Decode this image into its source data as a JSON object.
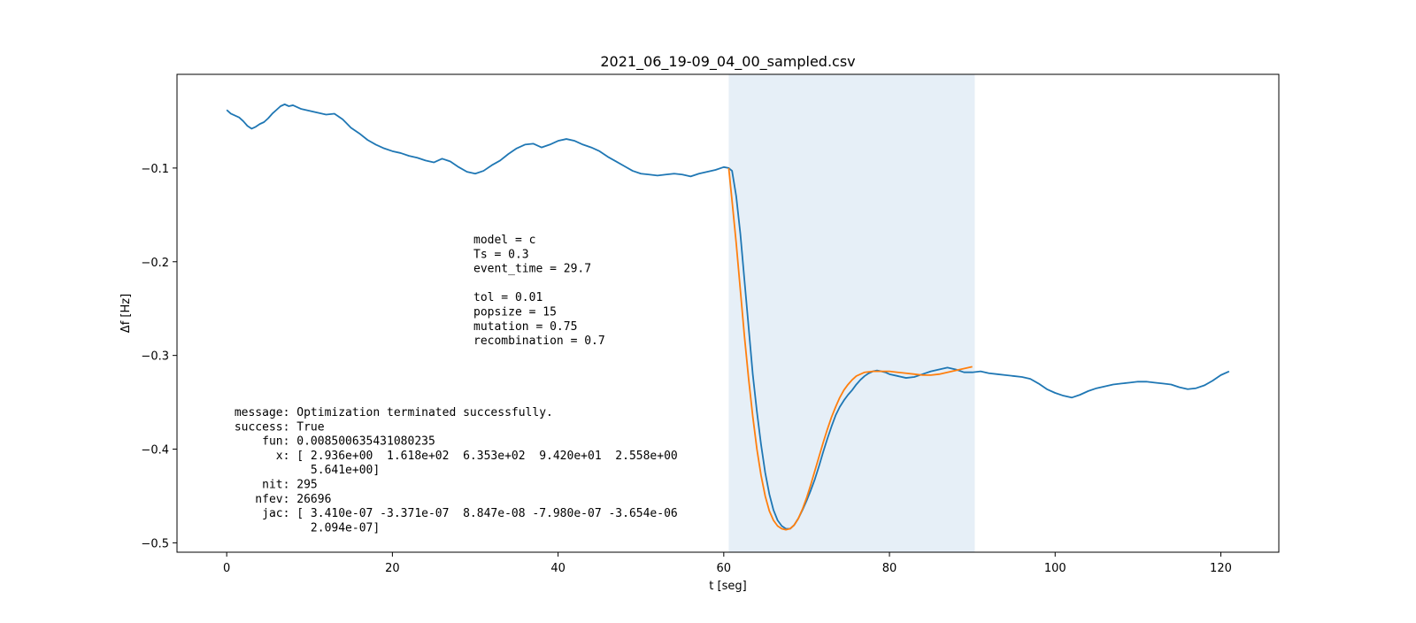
{
  "chart_data": {
    "type": "line",
    "title": "2021_06_19-09_04_00_sampled.csv",
    "xlabel": "t [seg]",
    "ylabel": "Δf [Hz]",
    "xlim": [
      -6.0,
      127.0
    ],
    "ylim": [
      -0.51,
      -0.0
    ],
    "xticks": [
      0,
      20,
      40,
      60,
      80,
      100,
      120
    ],
    "xtick_labels": [
      "0",
      "20",
      "40",
      "60",
      "80",
      "100",
      "120"
    ],
    "yticks": [
      -0.1,
      -0.2,
      -0.3,
      -0.4,
      -0.5
    ],
    "ytick_labels": [
      "−0.1",
      "−0.2",
      "−0.3",
      "−0.4",
      "−0.5"
    ],
    "grid": false,
    "shaded_span": {
      "x_start": 60.6,
      "x_end": 90.3,
      "color": "#e6eff7"
    },
    "colors": {
      "measured": "#1f77b4",
      "model": "#ff7f0e"
    },
    "series": [
      {
        "values": [
          [
            0.0,
            -0.038
          ],
          [
            0.5,
            -0.042
          ],
          [
            1.0,
            -0.044
          ],
          [
            1.5,
            -0.046
          ],
          [
            2.0,
            -0.05
          ],
          [
            2.5,
            -0.055
          ],
          [
            3.0,
            -0.058
          ],
          [
            3.5,
            -0.056
          ],
          [
            4.0,
            -0.053
          ],
          [
            4.5,
            -0.051
          ],
          [
            5.0,
            -0.047
          ],
          [
            5.5,
            -0.042
          ],
          [
            6.0,
            -0.038
          ],
          [
            6.5,
            -0.034
          ],
          [
            7.0,
            -0.032
          ],
          [
            7.5,
            -0.034
          ],
          [
            8.0,
            -0.033
          ],
          [
            8.5,
            -0.035
          ],
          [
            9.0,
            -0.037
          ],
          [
            10.0,
            -0.039
          ],
          [
            11.0,
            -0.041
          ],
          [
            12.0,
            -0.043
          ],
          [
            13.0,
            -0.042
          ],
          [
            14.0,
            -0.048
          ],
          [
            15.0,
            -0.057
          ],
          [
            16.0,
            -0.063
          ],
          [
            17.0,
            -0.07
          ],
          [
            18.0,
            -0.075
          ],
          [
            19.0,
            -0.079
          ],
          [
            20.0,
            -0.082
          ],
          [
            21.0,
            -0.084
          ],
          [
            22.0,
            -0.087
          ],
          [
            23.0,
            -0.089
          ],
          [
            24.0,
            -0.092
          ],
          [
            25.0,
            -0.094
          ],
          [
            26.0,
            -0.09
          ],
          [
            27.0,
            -0.093
          ],
          [
            28.0,
            -0.099
          ],
          [
            29.0,
            -0.104
          ],
          [
            30.0,
            -0.106
          ],
          [
            31.0,
            -0.103
          ],
          [
            32.0,
            -0.097
          ],
          [
            33.0,
            -0.092
          ],
          [
            34.0,
            -0.085
          ],
          [
            35.0,
            -0.079
          ],
          [
            36.0,
            -0.075
          ],
          [
            37.0,
            -0.074
          ],
          [
            38.0,
            -0.078
          ],
          [
            39.0,
            -0.075
          ],
          [
            40.0,
            -0.071
          ],
          [
            41.0,
            -0.069
          ],
          [
            42.0,
            -0.071
          ],
          [
            43.0,
            -0.075
          ],
          [
            44.0,
            -0.078
          ],
          [
            45.0,
            -0.082
          ],
          [
            46.0,
            -0.088
          ],
          [
            47.0,
            -0.093
          ],
          [
            48.0,
            -0.098
          ],
          [
            49.0,
            -0.103
          ],
          [
            50.0,
            -0.106
          ],
          [
            51.0,
            -0.107
          ],
          [
            52.0,
            -0.108
          ],
          [
            53.0,
            -0.107
          ],
          [
            54.0,
            -0.106
          ],
          [
            55.0,
            -0.107
          ],
          [
            56.0,
            -0.109
          ],
          [
            57.0,
            -0.106
          ],
          [
            58.0,
            -0.104
          ],
          [
            59.0,
            -0.102
          ],
          [
            60.0,
            -0.099
          ],
          [
            60.6,
            -0.1
          ],
          [
            61.0,
            -0.103
          ],
          [
            61.5,
            -0.13
          ],
          [
            62.0,
            -0.17
          ],
          [
            62.5,
            -0.22
          ],
          [
            63.0,
            -0.27
          ],
          [
            63.5,
            -0.32
          ],
          [
            64.0,
            -0.36
          ],
          [
            64.5,
            -0.395
          ],
          [
            65.0,
            -0.425
          ],
          [
            65.5,
            -0.448
          ],
          [
            66.0,
            -0.465
          ],
          [
            66.5,
            -0.476
          ],
          [
            67.0,
            -0.482
          ],
          [
            67.5,
            -0.485
          ],
          [
            68.0,
            -0.485
          ],
          [
            68.5,
            -0.481
          ],
          [
            69.0,
            -0.474
          ],
          [
            69.5,
            -0.465
          ],
          [
            70.0,
            -0.455
          ],
          [
            70.5,
            -0.444
          ],
          [
            71.0,
            -0.432
          ],
          [
            71.5,
            -0.418
          ],
          [
            72.0,
            -0.403
          ],
          [
            72.5,
            -0.389
          ],
          [
            73.0,
            -0.376
          ],
          [
            73.5,
            -0.364
          ],
          [
            74.0,
            -0.355
          ],
          [
            74.5,
            -0.348
          ],
          [
            75.0,
            -0.342
          ],
          [
            75.5,
            -0.337
          ],
          [
            76.0,
            -0.331
          ],
          [
            76.5,
            -0.326
          ],
          [
            77.0,
            -0.322
          ],
          [
            77.5,
            -0.319
          ],
          [
            78.0,
            -0.317
          ],
          [
            78.5,
            -0.316
          ],
          [
            79.0,
            -0.317
          ],
          [
            79.5,
            -0.318
          ],
          [
            80.0,
            -0.32
          ],
          [
            81.0,
            -0.322
          ],
          [
            82.0,
            -0.324
          ],
          [
            83.0,
            -0.323
          ],
          [
            84.0,
            -0.32
          ],
          [
            85.0,
            -0.317
          ],
          [
            86.0,
            -0.315
          ],
          [
            87.0,
            -0.313
          ],
          [
            88.0,
            -0.315
          ],
          [
            89.0,
            -0.318
          ],
          [
            90.0,
            -0.318
          ],
          [
            91.0,
            -0.317
          ],
          [
            92.0,
            -0.319
          ],
          [
            93.0,
            -0.32
          ],
          [
            94.0,
            -0.321
          ],
          [
            95.0,
            -0.322
          ],
          [
            96.0,
            -0.323
          ],
          [
            97.0,
            -0.325
          ],
          [
            98.0,
            -0.33
          ],
          [
            99.0,
            -0.336
          ],
          [
            100.0,
            -0.34
          ],
          [
            101.0,
            -0.343
          ],
          [
            102.0,
            -0.345
          ],
          [
            103.0,
            -0.342
          ],
          [
            104.0,
            -0.338
          ],
          [
            105.0,
            -0.335
          ],
          [
            106.0,
            -0.333
          ],
          [
            107.0,
            -0.331
          ],
          [
            108.0,
            -0.33
          ],
          [
            109.0,
            -0.329
          ],
          [
            110.0,
            -0.328
          ],
          [
            111.0,
            -0.328
          ],
          [
            112.0,
            -0.329
          ],
          [
            113.0,
            -0.33
          ],
          [
            114.0,
            -0.331
          ],
          [
            115.0,
            -0.334
          ],
          [
            116.0,
            -0.336
          ],
          [
            117.0,
            -0.335
          ],
          [
            118.0,
            -0.332
          ],
          [
            119.0,
            -0.327
          ],
          [
            120.0,
            -0.321
          ],
          [
            121.0,
            -0.317
          ]
        ]
      },
      {
        "values": [
          [
            60.6,
            -0.1
          ],
          [
            61.0,
            -0.135
          ],
          [
            61.5,
            -0.18
          ],
          [
            62.0,
            -0.23
          ],
          [
            62.5,
            -0.28
          ],
          [
            63.0,
            -0.325
          ],
          [
            63.5,
            -0.365
          ],
          [
            64.0,
            -0.4
          ],
          [
            64.5,
            -0.428
          ],
          [
            65.0,
            -0.45
          ],
          [
            65.5,
            -0.466
          ],
          [
            66.0,
            -0.476
          ],
          [
            66.5,
            -0.482
          ],
          [
            67.0,
            -0.485
          ],
          [
            67.5,
            -0.486
          ],
          [
            68.0,
            -0.485
          ],
          [
            68.5,
            -0.481
          ],
          [
            69.0,
            -0.474
          ],
          [
            69.5,
            -0.464
          ],
          [
            70.0,
            -0.452
          ],
          [
            70.5,
            -0.438
          ],
          [
            71.0,
            -0.423
          ],
          [
            71.5,
            -0.408
          ],
          [
            72.0,
            -0.393
          ],
          [
            72.5,
            -0.379
          ],
          [
            73.0,
            -0.366
          ],
          [
            73.5,
            -0.355
          ],
          [
            74.0,
            -0.345
          ],
          [
            74.5,
            -0.337
          ],
          [
            75.0,
            -0.331
          ],
          [
            75.5,
            -0.326
          ],
          [
            76.0,
            -0.322
          ],
          [
            77.0,
            -0.318
          ],
          [
            78.0,
            -0.317
          ],
          [
            79.0,
            -0.317
          ],
          [
            80.0,
            -0.317
          ],
          [
            81.0,
            -0.318
          ],
          [
            82.0,
            -0.319
          ],
          [
            83.0,
            -0.32
          ],
          [
            84.0,
            -0.321
          ],
          [
            85.0,
            -0.321
          ],
          [
            86.0,
            -0.32
          ],
          [
            87.0,
            -0.318
          ],
          [
            88.0,
            -0.316
          ],
          [
            89.0,
            -0.314
          ],
          [
            90.0,
            -0.312
          ]
        ]
      }
    ],
    "annotations": {
      "params": [
        "model = c",
        "Ts = 0.3",
        "event_time = 29.7",
        "",
        "tol = 0.01",
        "popsize = 15",
        "mutation = 0.75",
        "recombination = 0.7"
      ],
      "result": [
        " message: Optimization terminated successfully.",
        " success: True",
        "     fun: 0.008500635431080235",
        "       x: [ 2.936e+00  1.618e+02  6.353e+02  9.420e+01  2.558e+00",
        "            5.641e+00]",
        "     nit: 295",
        "    nfev: 26696",
        "     jac: [ 3.410e-07 -3.371e-07  8.847e-08 -7.980e-07 -3.654e-06",
        "            2.094e-07]"
      ]
    }
  }
}
